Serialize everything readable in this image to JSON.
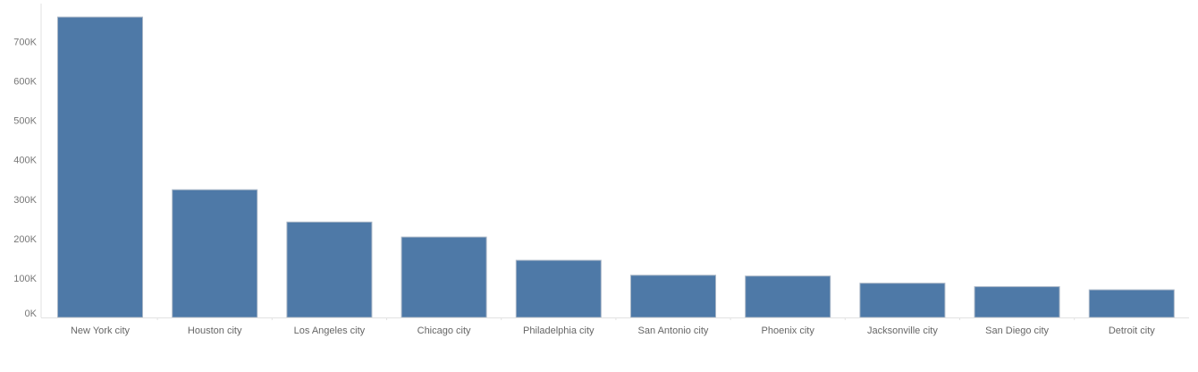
{
  "chart_data": {
    "type": "bar",
    "title": "",
    "xlabel": "",
    "ylabel": "",
    "categories": [
      "New York city",
      "Houston city",
      "Los Angeles city",
      "Chicago city",
      "Philadelphia city",
      "San Antonio city",
      "Phoenix city",
      "Jacksonville city",
      "San Diego city",
      "Detroit city"
    ],
    "values": [
      762000,
      324000,
      242000,
      204000,
      145000,
      107000,
      105000,
      87000,
      78000,
      70000
    ],
    "ylim": [
      0,
      760000
    ],
    "yticks": [
      0,
      100000,
      200000,
      300000,
      400000,
      500000,
      600000,
      700000
    ],
    "ytick_labels": [
      "0K",
      "100K",
      "200K",
      "300K",
      "400K",
      "500K",
      "600K",
      "700K"
    ],
    "grid": false,
    "legend": "none",
    "bar_color": "#4e79a7"
  }
}
